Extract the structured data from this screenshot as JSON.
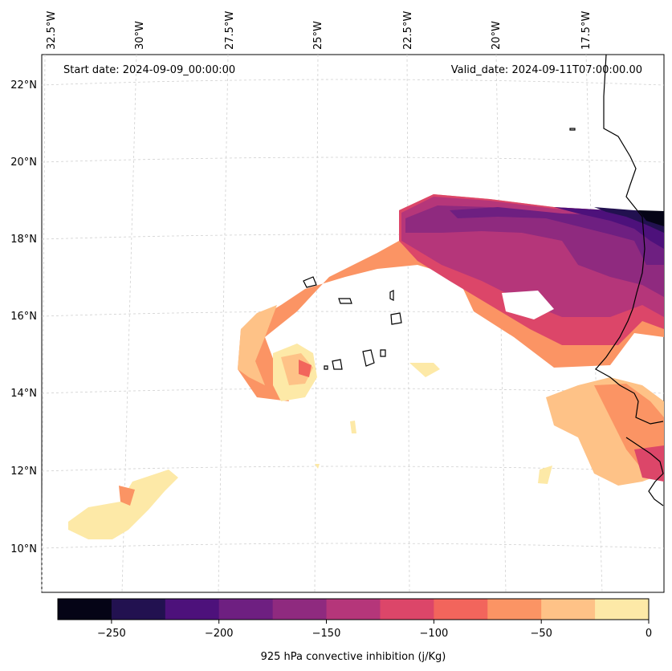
{
  "map": {
    "start_date": "Start date: 2024-09-09_00:00:00",
    "valid_date": "Valid_date: 2024-09-11T07:00:00.00",
    "lon_labels": [
      "32.5°W",
      "30°W",
      "27.5°W",
      "25°W",
      "22.5°W",
      "20°W",
      "17.5°W"
    ],
    "lat_labels": [
      "22°N",
      "20°N",
      "18°N",
      "16°N",
      "14°N",
      "12°N",
      "10°N"
    ]
  },
  "colorbar": {
    "label": "925 hPa convective inhibition (j/Kg)",
    "ticks": [
      "−250",
      "−200",
      "−150",
      "−100",
      "−50",
      "0"
    ],
    "colors": [
      "#050416",
      "#221150",
      "#4d117b",
      "#6e1f81",
      "#8f2a7f",
      "#b5367a",
      "#dc4669",
      "#f2655c",
      "#fb9464",
      "#fec287",
      "#fde9a7"
    ]
  }
}
